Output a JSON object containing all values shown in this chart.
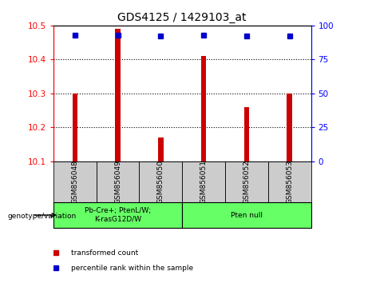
{
  "title": "GDS4125 / 1429103_at",
  "samples": [
    "GSM856048",
    "GSM856049",
    "GSM856050",
    "GSM856051",
    "GSM856052",
    "GSM856053"
  ],
  "bar_values": [
    10.3,
    10.49,
    10.17,
    10.41,
    10.26,
    10.3
  ],
  "bar_bottom": 10.1,
  "percentile_values": [
    93,
    93,
    92,
    93,
    92,
    92
  ],
  "ylim_left": [
    10.1,
    10.5
  ],
  "ylim_right": [
    0,
    100
  ],
  "yticks_left": [
    10.1,
    10.2,
    10.3,
    10.4,
    10.5
  ],
  "yticks_right": [
    0,
    25,
    50,
    75,
    100
  ],
  "grid_yticks": [
    10.2,
    10.3,
    10.4
  ],
  "bar_color": "#cc0000",
  "dot_color": "#0000cc",
  "group1_label": "Pb-Cre+; PtenL/W;\nK-rasG12D/W",
  "group2_label": "Pten null",
  "group_bg_color": "#66ff66",
  "sample_bg_color": "#cccccc",
  "genotype_label": "genotype/variation",
  "legend_bar_label": "transformed count",
  "legend_dot_label": "percentile rank within the sample",
  "bar_width": 0.12
}
